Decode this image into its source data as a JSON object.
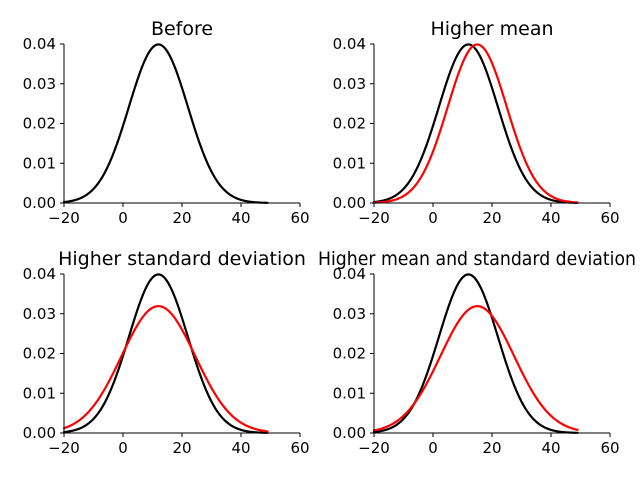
{
  "chart_data": [
    {
      "type": "line",
      "title": "Before",
      "xlim": [
        -20,
        60
      ],
      "ylim": [
        0,
        0.04
      ],
      "xticks": [
        "−20",
        "0",
        "20",
        "40",
        "60"
      ],
      "yticks": [
        "0.00",
        "0.01",
        "0.02",
        "0.03",
        "0.04"
      ],
      "series": [
        {
          "color": "#000000",
          "mean": 12,
          "sd": 10,
          "x_range": [
            -20,
            49
          ]
        }
      ]
    },
    {
      "type": "line",
      "title": "Higher mean",
      "xlim": [
        -20,
        60
      ],
      "ylim": [
        0,
        0.04
      ],
      "xticks": [
        "−20",
        "0",
        "20",
        "40",
        "60"
      ],
      "yticks": [
        "0.00",
        "0.01",
        "0.02",
        "0.03",
        "0.04"
      ],
      "series": [
        {
          "color": "#000000",
          "mean": 12,
          "sd": 10,
          "x_range": [
            -20,
            49
          ]
        },
        {
          "color": "#ff0000",
          "mean": 15,
          "sd": 10,
          "x_range": [
            -20,
            49
          ]
        }
      ]
    },
    {
      "type": "line",
      "title": "Higher standard deviation",
      "xlim": [
        -20,
        60
      ],
      "ylim": [
        0,
        0.04
      ],
      "xticks": [
        "−20",
        "0",
        "20",
        "40",
        "60"
      ],
      "yticks": [
        "0.00",
        "0.01",
        "0.02",
        "0.03",
        "0.04"
      ],
      "series": [
        {
          "color": "#000000",
          "mean": 12,
          "sd": 10,
          "x_range": [
            -20,
            49
          ]
        },
        {
          "color": "#ff0000",
          "mean": 12,
          "sd": 12.5,
          "x_range": [
            -20,
            49
          ]
        }
      ]
    },
    {
      "type": "line",
      "title": "Higher mean and standard deviation",
      "xlim": [
        -20,
        60
      ],
      "ylim": [
        0,
        0.04
      ],
      "xticks": [
        "−20",
        "0",
        "20",
        "40",
        "60"
      ],
      "yticks": [
        "0.00",
        "0.01",
        "0.02",
        "0.03",
        "0.04"
      ],
      "series": [
        {
          "color": "#000000",
          "mean": 12,
          "sd": 10,
          "x_range": [
            -20,
            49
          ]
        },
        {
          "color": "#ff0000",
          "mean": 15,
          "sd": 12.5,
          "x_range": [
            -20,
            49
          ]
        }
      ]
    }
  ]
}
